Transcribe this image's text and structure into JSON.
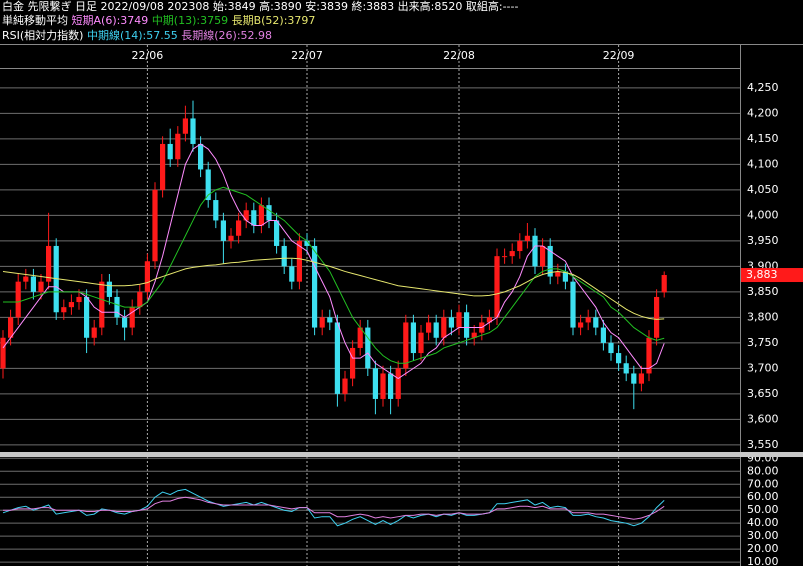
{
  "header": {
    "line1": "白金 先限繋ぎ 日足 2022/09/08 202308 始:3849 高:3890 安:3839 終:3883 出来高:8520 取組高:----",
    "ma_label": "単純移動平均",
    "ma_short": "短期A(6):3749",
    "ma_mid": "中期(13):3759",
    "ma_long": "長期B(52):3797",
    "rsi_label": "RSI(相対力指数)",
    "rsi_mid": "中期線(14):57.55",
    "rsi_long": "長期線(26):52.98"
  },
  "chart_data": [
    {
      "type": "candlestick",
      "up_color": "#ff1a1a",
      "down_color": "#3ee0f0",
      "grid": true,
      "categories": [
        null,
        null,
        null,
        null,
        null,
        null,
        null,
        null,
        null,
        null,
        null,
        null,
        null,
        null,
        null,
        null,
        null,
        null,
        null,
        "22/06",
        null,
        null,
        null,
        null,
        null,
        null,
        null,
        null,
        null,
        null,
        null,
        null,
        null,
        null,
        null,
        null,
        null,
        null,
        null,
        null,
        "22/07",
        null,
        null,
        null,
        null,
        null,
        null,
        null,
        null,
        null,
        null,
        null,
        null,
        null,
        null,
        null,
        null,
        null,
        null,
        null,
        "22/08",
        null,
        null,
        null,
        null,
        null,
        null,
        null,
        null,
        null,
        null,
        null,
        null,
        null,
        null,
        null,
        null,
        null,
        null,
        null,
        null,
        "22/09",
        null,
        null,
        null,
        null,
        null,
        null
      ],
      "open": [
        3700,
        3760,
        3800,
        3870,
        3880,
        3850,
        3870,
        3940,
        3810,
        3820,
        3830,
        3840,
        3760,
        3780,
        3870,
        3840,
        3800,
        3780,
        3820,
        3850,
        3910,
        4050,
        4140,
        4110,
        4160,
        4190,
        4140,
        4090,
        4030,
        3990,
        3950,
        3960,
        3990,
        4010,
        3980,
        4020,
        3990,
        3940,
        3900,
        3870,
        3950,
        3940,
        3780,
        3800,
        3790,
        3650,
        3680,
        3740,
        3780,
        3700,
        3640,
        3690,
        3640,
        3700,
        3790,
        3730,
        3770,
        3790,
        3760,
        3800,
        3780,
        3810,
        3760,
        3770,
        3790,
        3800,
        3920,
        3920,
        3930,
        3950,
        3960,
        3900,
        3940,
        3880,
        3890,
        3870,
        3780,
        3790,
        3800,
        3780,
        3750,
        3730,
        3710,
        3690,
        3670,
        3690,
        3760,
        3849
      ],
      "high": [
        3775,
        3815,
        3885,
        3895,
        3895,
        3885,
        4005,
        3955,
        3835,
        3845,
        3855,
        3855,
        3795,
        3885,
        3885,
        3855,
        3815,
        3835,
        3865,
        3925,
        4065,
        4155,
        4170,
        4175,
        4215,
        4225,
        4155,
        4105,
        4045,
        4005,
        3975,
        4005,
        4025,
        4025,
        4035,
        4035,
        4005,
        3955,
        3915,
        3965,
        3965,
        3955,
        3815,
        3815,
        3805,
        3695,
        3755,
        3795,
        3795,
        3715,
        3705,
        3705,
        3715,
        3805,
        3805,
        3785,
        3805,
        3805,
        3815,
        3815,
        3825,
        3825,
        3785,
        3805,
        3815,
        3935,
        3935,
        3945,
        3965,
        3985,
        3975,
        3955,
        3955,
        3905,
        3905,
        3885,
        3805,
        3815,
        3815,
        3795,
        3765,
        3745,
        3725,
        3705,
        3705,
        3775,
        3855,
        3890
      ],
      "low": [
        3680,
        3745,
        3785,
        3855,
        3835,
        3835,
        3855,
        3795,
        3795,
        3805,
        3815,
        3730,
        3745,
        3765,
        3825,
        3785,
        3755,
        3765,
        3805,
        3835,
        3895,
        4035,
        4095,
        4095,
        4145,
        4125,
        4075,
        4015,
        3975,
        3905,
        3935,
        3945,
        3975,
        3965,
        3965,
        3975,
        3925,
        3885,
        3855,
        3855,
        3925,
        3765,
        3765,
        3775,
        3625,
        3635,
        3665,
        3725,
        3685,
        3610,
        3625,
        3610,
        3625,
        3685,
        3715,
        3715,
        3755,
        3745,
        3745,
        3765,
        3765,
        3745,
        3745,
        3755,
        3775,
        3785,
        3905,
        3905,
        3915,
        3935,
        3885,
        3885,
        3865,
        3865,
        3855,
        3765,
        3765,
        3775,
        3765,
        3735,
        3715,
        3695,
        3675,
        3620,
        3655,
        3675,
        3745,
        3839
      ],
      "close": [
        3760,
        3800,
        3870,
        3880,
        3850,
        3870,
        3940,
        3810,
        3820,
        3830,
        3840,
        3760,
        3780,
        3870,
        3840,
        3800,
        3780,
        3820,
        3850,
        3910,
        4050,
        4140,
        4110,
        4160,
        4190,
        4140,
        4090,
        4030,
        3990,
        3950,
        3960,
        3990,
        4010,
        3980,
        4020,
        3990,
        3940,
        3900,
        3870,
        3950,
        3940,
        3780,
        3800,
        3790,
        3650,
        3680,
        3740,
        3780,
        3700,
        3640,
        3690,
        3640,
        3700,
        3790,
        3730,
        3770,
        3790,
        3760,
        3800,
        3780,
        3810,
        3760,
        3770,
        3790,
        3800,
        3920,
        3920,
        3930,
        3950,
        3960,
        3900,
        3940,
        3880,
        3890,
        3870,
        3780,
        3790,
        3800,
        3780,
        3750,
        3730,
        3710,
        3690,
        3670,
        3690,
        3760,
        3840,
        3883
      ],
      "series": [
        {
          "color": "#ff8cff",
          "values": [
            3740,
            3760,
            3780,
            3800,
            3820,
            3840,
            3860,
            3860,
            3850,
            3850,
            3850,
            3840,
            3820,
            3810,
            3810,
            3810,
            3800,
            3810,
            3820,
            3830,
            3870,
            3920,
            3980,
            4040,
            4100,
            4130,
            4140,
            4130,
            4110,
            4080,
            4040,
            4010,
            3990,
            3980,
            3980,
            3990,
            3990,
            3970,
            3950,
            3940,
            3930,
            3900,
            3870,
            3840,
            3790,
            3750,
            3720,
            3720,
            3730,
            3710,
            3700,
            3690,
            3680,
            3690,
            3700,
            3710,
            3730,
            3740,
            3760,
            3770,
            3780,
            3780,
            3780,
            3780,
            3790,
            3800,
            3830,
            3850,
            3880,
            3920,
            3940,
            3940,
            3930,
            3920,
            3910,
            3880,
            3860,
            3840,
            3820,
            3790,
            3770,
            3760,
            3740,
            3720,
            3700,
            3700,
            3710,
            3749
          ]
        },
        {
          "color": "#22c022",
          "values": [
            3830,
            3830,
            3830,
            3835,
            3840,
            3845,
            3850,
            3850,
            3850,
            3850,
            3850,
            3845,
            3840,
            3835,
            3830,
            3825,
            3820,
            3820,
            3820,
            3830,
            3850,
            3870,
            3900,
            3930,
            3960,
            3990,
            4020,
            4040,
            4050,
            4055,
            4050,
            4045,
            4040,
            4030,
            4020,
            4010,
            4000,
            3990,
            3975,
            3960,
            3950,
            3930,
            3910,
            3890,
            3860,
            3830,
            3800,
            3780,
            3760,
            3740,
            3725,
            3715,
            3710,
            3710,
            3715,
            3720,
            3725,
            3730,
            3740,
            3745,
            3750,
            3755,
            3760,
            3765,
            3770,
            3780,
            3800,
            3820,
            3840,
            3860,
            3880,
            3890,
            3895,
            3895,
            3890,
            3880,
            3870,
            3860,
            3850,
            3840,
            3820,
            3810,
            3795,
            3780,
            3770,
            3760,
            3755,
            3759
          ]
        },
        {
          "color": "#e6e66e",
          "values": [
            3890,
            3888,
            3886,
            3884,
            3882,
            3880,
            3878,
            3876,
            3874,
            3872,
            3870,
            3868,
            3866,
            3864,
            3862,
            3862,
            3862,
            3863,
            3865,
            3868,
            3875,
            3880,
            3885,
            3890,
            3895,
            3898,
            3900,
            3902,
            3903,
            3905,
            3907,
            3908,
            3910,
            3912,
            3913,
            3914,
            3915,
            3916,
            3916,
            3915,
            3912,
            3908,
            3904,
            3900,
            3895,
            3890,
            3886,
            3882,
            3878,
            3874,
            3870,
            3866,
            3862,
            3860,
            3858,
            3856,
            3854,
            3852,
            3850,
            3848,
            3846,
            3844,
            3842,
            3842,
            3843,
            3846,
            3850,
            3856,
            3862,
            3870,
            3878,
            3884,
            3888,
            3890,
            3888,
            3884,
            3876,
            3866,
            3856,
            3846,
            3836,
            3826,
            3816,
            3808,
            3802,
            3798,
            3796,
            3797
          ]
        }
      ],
      "last_price": {
        "value": 3883,
        "label": "3,883",
        "color": "#ff1a1a"
      },
      "ylim": [
        3536,
        4285
      ],
      "yticks": [
        {
          "value": 3550,
          "label": "3,550"
        },
        {
          "value": 3600,
          "label": "3,600"
        },
        {
          "value": 3650,
          "label": "3,650"
        },
        {
          "value": 3700,
          "label": "3,700"
        },
        {
          "value": 3750,
          "label": "3,750"
        },
        {
          "value": 3800,
          "label": "3,800"
        },
        {
          "value": 3850,
          "label": "3,850"
        },
        {
          "value": 3900,
          "label": "3,900"
        },
        {
          "value": 3950,
          "label": "3,950"
        },
        {
          "value": 4000,
          "label": "4,000"
        },
        {
          "value": 4050,
          "label": "4,050"
        },
        {
          "value": 4100,
          "label": "4,100"
        },
        {
          "value": 4150,
          "label": "4,150"
        },
        {
          "value": 4200,
          "label": "4,200"
        },
        {
          "value": 4250,
          "label": "4,250"
        }
      ]
    },
    {
      "type": "line",
      "grid": true,
      "series": [
        {
          "color": "#3ed0f0",
          "values": [
            48,
            50,
            52,
            53,
            50,
            52,
            54,
            47,
            48,
            49,
            50,
            46,
            47,
            51,
            50,
            48,
            47,
            49,
            50,
            53,
            60,
            64,
            62,
            65,
            66,
            63,
            60,
            57,
            55,
            53,
            54,
            55,
            56,
            54,
            56,
            54,
            52,
            50,
            49,
            52,
            52,
            44,
            45,
            45,
            38,
            40,
            43,
            45,
            42,
            39,
            42,
            39,
            42,
            46,
            44,
            46,
            47,
            45,
            47,
            46,
            48,
            46,
            46,
            47,
            48,
            55,
            55,
            56,
            57,
            58,
            54,
            56,
            52,
            53,
            52,
            46,
            46,
            47,
            45,
            44,
            42,
            41,
            40,
            38,
            40,
            45,
            52,
            57.55
          ]
        },
        {
          "color": "#e080e0",
          "values": [
            50,
            50,
            51,
            51,
            51,
            52,
            52,
            50,
            50,
            50,
            50,
            49,
            49,
            50,
            50,
            49,
            49,
            49,
            50,
            51,
            55,
            57,
            57,
            59,
            60,
            59,
            58,
            56,
            55,
            54,
            54,
            54,
            54,
            54,
            54,
            54,
            53,
            52,
            51,
            52,
            52,
            48,
            48,
            48,
            45,
            45,
            46,
            47,
            46,
            44,
            45,
            44,
            45,
            46,
            46,
            47,
            47,
            46,
            47,
            47,
            48,
            47,
            47,
            47,
            48,
            51,
            51,
            52,
            53,
            53,
            52,
            53,
            51,
            51,
            51,
            48,
            48,
            48,
            47,
            47,
            46,
            45,
            44,
            43,
            44,
            46,
            49,
            52.98
          ]
        }
      ],
      "ylim": [
        7,
        91
      ],
      "yticks": [
        {
          "value": 10,
          "label": "10.00"
        },
        {
          "value": 20,
          "label": "20.00"
        },
        {
          "value": 30,
          "label": "30.00"
        },
        {
          "value": 40,
          "label": "40.00"
        },
        {
          "value": 50,
          "label": "50.00"
        },
        {
          "value": 60,
          "label": "60.00"
        },
        {
          "value": 70,
          "label": "70.00"
        },
        {
          "value": 80,
          "label": "80.00"
        },
        {
          "value": 90,
          "label": "90.00"
        }
      ]
    }
  ]
}
